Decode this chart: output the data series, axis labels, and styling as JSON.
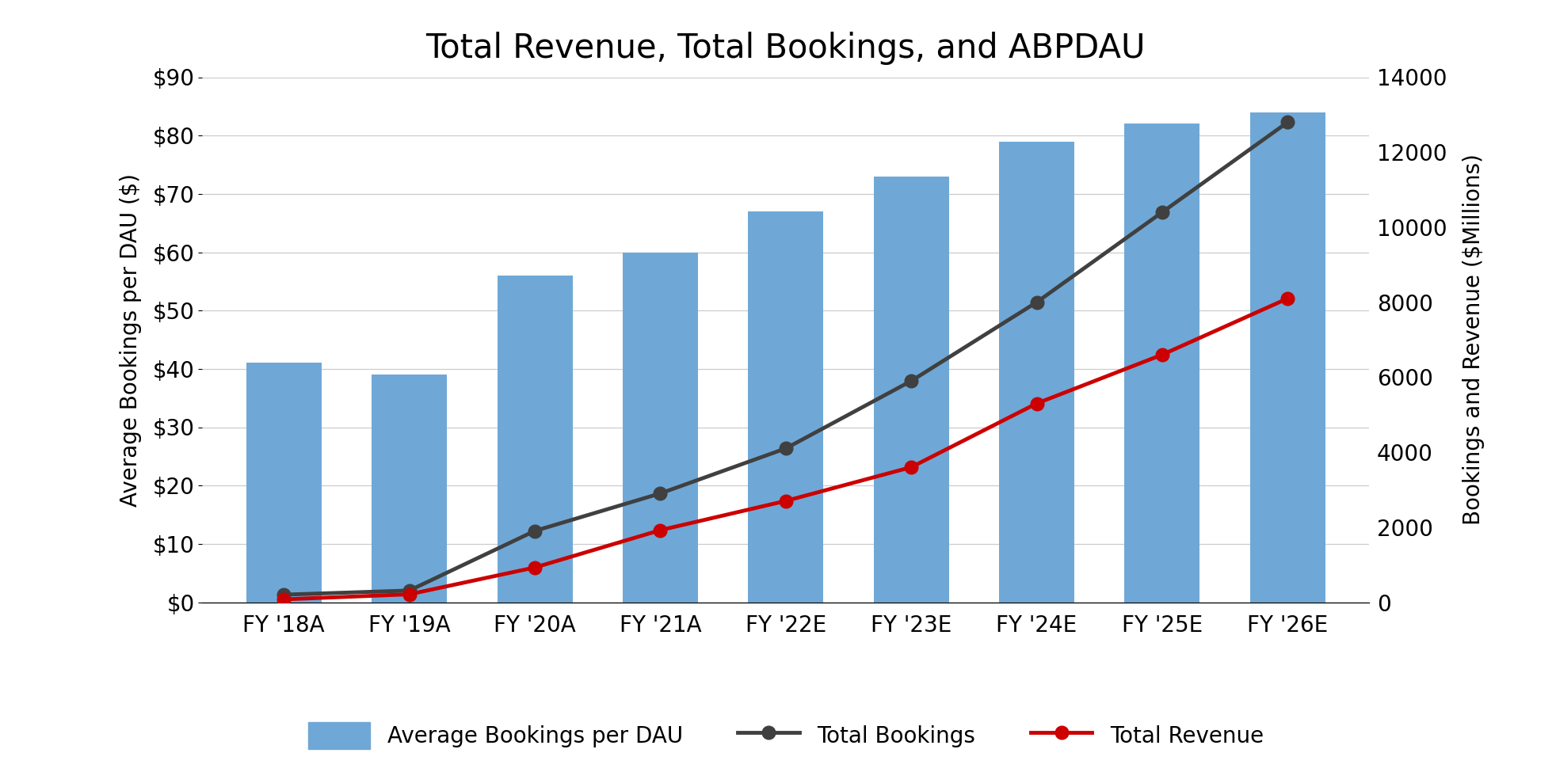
{
  "title": "Total Revenue, Total Bookings, and ABPDAU",
  "categories": [
    "FY '18A",
    "FY '19A",
    "FY '20A",
    "FY '21A",
    "FY '22E",
    "FY '23E",
    "FY '24E",
    "FY '25E",
    "FY '26E"
  ],
  "abpdau": [
    41,
    39,
    56,
    60,
    67,
    73,
    79,
    82,
    84
  ],
  "total_bookings": [
    200,
    310,
    1900,
    2900,
    4100,
    5900,
    8000,
    10400,
    12800
  ],
  "total_revenue": [
    75,
    210,
    925,
    1920,
    2700,
    3600,
    5300,
    6600,
    8100
  ],
  "bar_color": "#6fa8d6",
  "bookings_line_color": "#404040",
  "revenue_line_color": "#cc0000",
  "left_ylabel": "Average Bookings per DAU ($)",
  "right_ylabel": "Bookings and Revenue ($Millions)",
  "left_ylim": [
    0,
    90
  ],
  "right_ylim": [
    0,
    14000
  ],
  "left_yticks": [
    0,
    10,
    20,
    30,
    40,
    50,
    60,
    70,
    80,
    90
  ],
  "left_yticklabels": [
    "$0",
    "$10",
    "$20",
    "$30",
    "$40",
    "$50",
    "$60",
    "$70",
    "$80",
    "$90"
  ],
  "right_yticks": [
    0,
    2000,
    4000,
    6000,
    8000,
    10000,
    12000,
    14000
  ],
  "right_yticklabels": [
    "0",
    "2000",
    "4000",
    "6000",
    "8000",
    "10000",
    "12000",
    "14000"
  ],
  "legend_abpdau": "Average Bookings per DAU",
  "legend_bookings": "Total Bookings",
  "legend_revenue": "Total Revenue",
  "background_color": "#ffffff",
  "title_fontsize": 30,
  "axis_fontsize": 20,
  "tick_fontsize": 20,
  "legend_fontsize": 20,
  "marker_size": 12,
  "line_width": 3.5,
  "bar_width": 0.6
}
